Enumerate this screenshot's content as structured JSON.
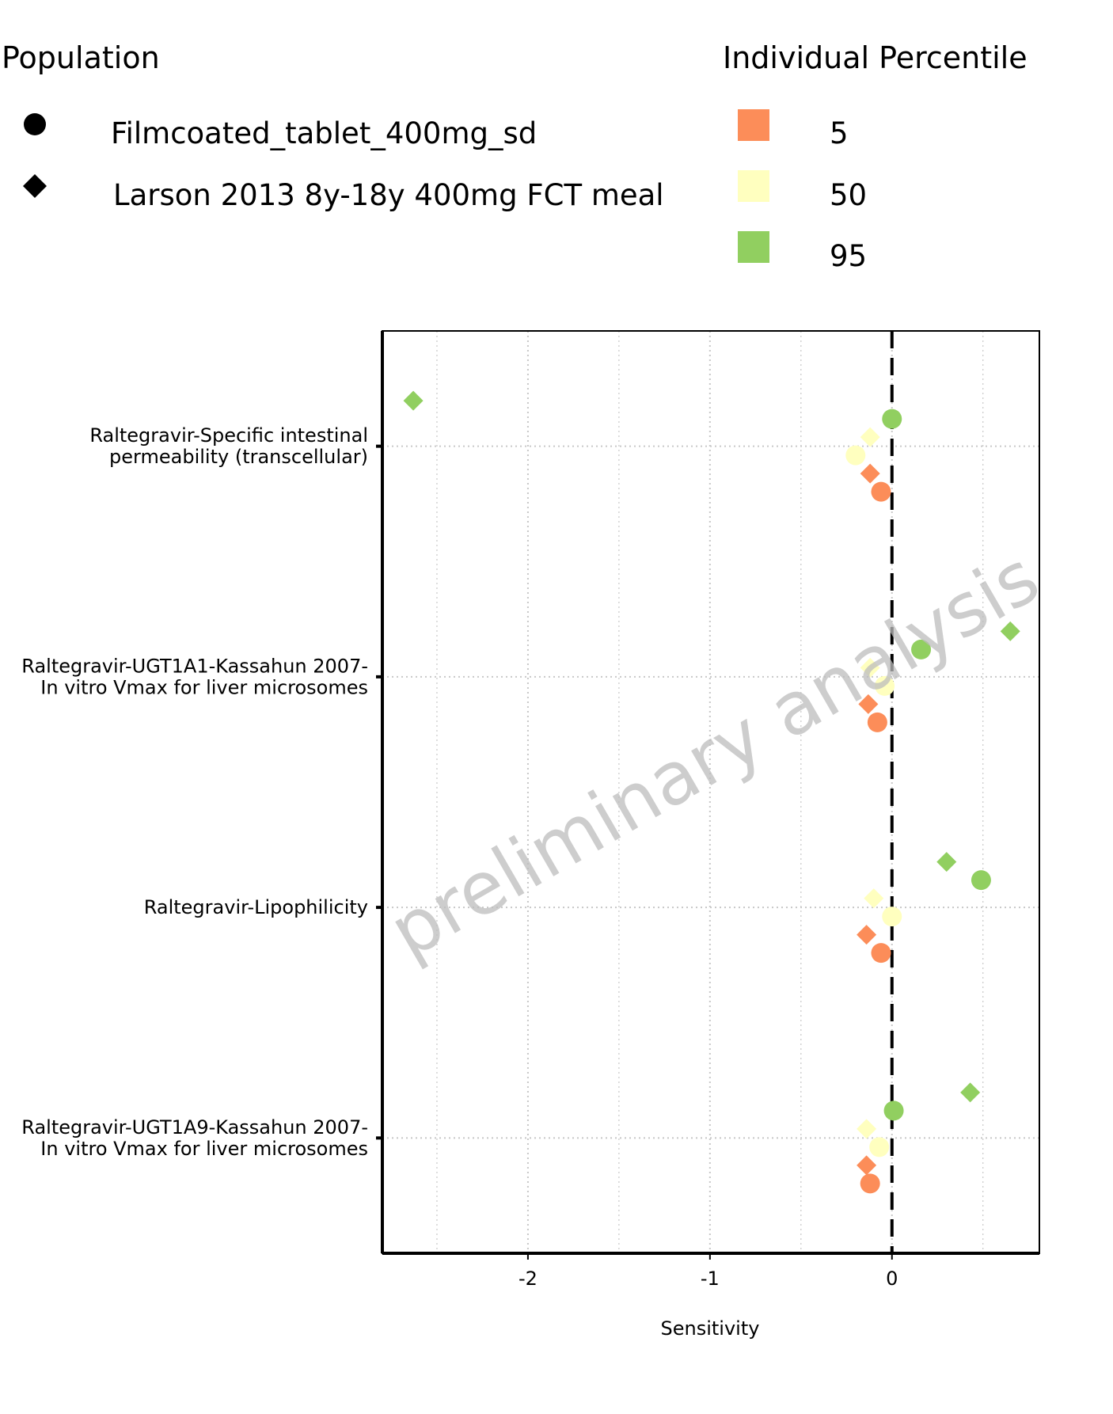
{
  "chart_data": {
    "type": "scatter",
    "xlabel": "Sensitivity",
    "ylabel": "",
    "xlim": [
      -2.8,
      0.81
    ],
    "xticks": [
      -2,
      -1,
      0
    ],
    "xtick_labels": [
      "-2",
      "-1",
      "0"
    ],
    "grid": true,
    "reference_line_x": 0,
    "categories": [
      {
        "label": [
          "Raltegravir-Specific intestinal",
          "permeability (transcellular)"
        ]
      },
      {
        "label": [
          "Raltegravir-UGT1A1-Kassahun 2007-",
          "In vitro Vmax for liver microsomes"
        ]
      },
      {
        "label": [
          "Raltegravir-Lipophilicity"
        ]
      },
      {
        "label": [
          "Raltegravir-UGT1A9-Kassahun 2007-",
          "In vitro Vmax for liver microsomes"
        ]
      }
    ],
    "legend": {
      "population_title": "Population",
      "populations": [
        {
          "name": "Filmcoated_tablet_400mg_sd",
          "shape": "circle"
        },
        {
          "name": "Larson 2013 8y-18y 400mg FCT meal",
          "shape": "diamond"
        }
      ],
      "percentile_title": "Individual Percentile",
      "percentiles": [
        {
          "name": "5",
          "color": "#fc8d59"
        },
        {
          "name": "50",
          "color": "#ffffbf"
        },
        {
          "name": "95",
          "color": "#91cf60"
        }
      ]
    },
    "points": [
      {
        "category": 0,
        "population": "Larson 2013 8y-18y 400mg FCT meal",
        "percentile": "95",
        "x": -2.63
      },
      {
        "category": 0,
        "population": "Filmcoated_tablet_400mg_sd",
        "percentile": "95",
        "x": 0.0
      },
      {
        "category": 0,
        "population": "Larson 2013 8y-18y 400mg FCT meal",
        "percentile": "50",
        "x": -0.12
      },
      {
        "category": 0,
        "population": "Filmcoated_tablet_400mg_sd",
        "percentile": "50",
        "x": -0.2
      },
      {
        "category": 0,
        "population": "Larson 2013 8y-18y 400mg FCT meal",
        "percentile": "5",
        "x": -0.12
      },
      {
        "category": 0,
        "population": "Filmcoated_tablet_400mg_sd",
        "percentile": "5",
        "x": -0.06
      },
      {
        "category": 1,
        "population": "Larson 2013 8y-18y 400mg FCT meal",
        "percentile": "95",
        "x": 0.65
      },
      {
        "category": 1,
        "population": "Filmcoated_tablet_400mg_sd",
        "percentile": "95",
        "x": 0.16
      },
      {
        "category": 1,
        "population": "Larson 2013 8y-18y 400mg FCT meal",
        "percentile": "50",
        "x": -0.12
      },
      {
        "category": 1,
        "population": "Filmcoated_tablet_400mg_sd",
        "percentile": "50",
        "x": -0.04
      },
      {
        "category": 1,
        "population": "Larson 2013 8y-18y 400mg FCT meal",
        "percentile": "5",
        "x": -0.13
      },
      {
        "category": 1,
        "population": "Filmcoated_tablet_400mg_sd",
        "percentile": "5",
        "x": -0.08
      },
      {
        "category": 2,
        "population": "Larson 2013 8y-18y 400mg FCT meal",
        "percentile": "95",
        "x": 0.3
      },
      {
        "category": 2,
        "population": "Filmcoated_tablet_400mg_sd",
        "percentile": "95",
        "x": 0.49
      },
      {
        "category": 2,
        "population": "Larson 2013 8y-18y 400mg FCT meal",
        "percentile": "50",
        "x": -0.1
      },
      {
        "category": 2,
        "population": "Filmcoated_tablet_400mg_sd",
        "percentile": "50",
        "x": 0.0
      },
      {
        "category": 2,
        "population": "Larson 2013 8y-18y 400mg FCT meal",
        "percentile": "5",
        "x": -0.14
      },
      {
        "category": 2,
        "population": "Filmcoated_tablet_400mg_sd",
        "percentile": "5",
        "x": -0.06
      },
      {
        "category": 3,
        "population": "Larson 2013 8y-18y 400mg FCT meal",
        "percentile": "95",
        "x": 0.43
      },
      {
        "category": 3,
        "population": "Filmcoated_tablet_400mg_sd",
        "percentile": "95",
        "x": 0.01
      },
      {
        "category": 3,
        "population": "Larson 2013 8y-18y 400mg FCT meal",
        "percentile": "50",
        "x": -0.14
      },
      {
        "category": 3,
        "population": "Filmcoated_tablet_400mg_sd",
        "percentile": "50",
        "x": -0.07
      },
      {
        "category": 3,
        "population": "Larson 2013 8y-18y 400mg FCT meal",
        "percentile": "5",
        "x": -0.14
      },
      {
        "category": 3,
        "population": "Filmcoated_tablet_400mg_sd",
        "percentile": "5",
        "x": -0.12
      }
    ],
    "watermark": "preliminary analysis"
  }
}
